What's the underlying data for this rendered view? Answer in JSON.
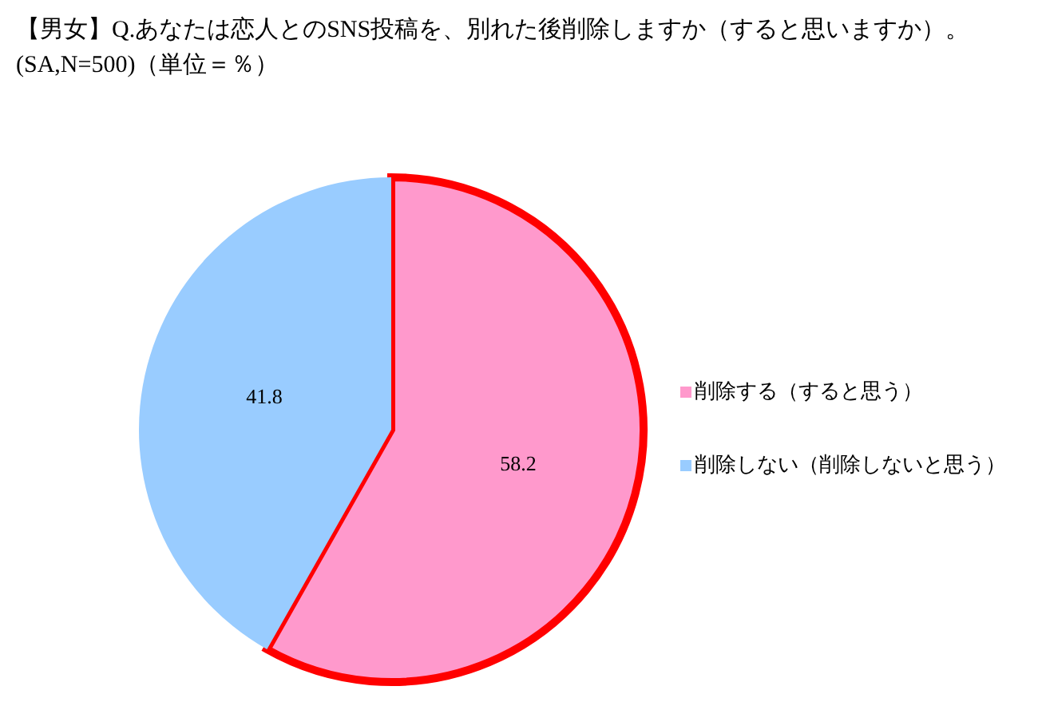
{
  "chart_data": {
    "type": "pie",
    "title": "【男女】Q.あなたは恋人とのSNS投稿を、別れた後削除しますか（すると思いますか）。",
    "subtitle": "(SA,N=500)（単位＝％）",
    "categories": [
      "削除する（すると思う）",
      "削除しない（削除しないと思う）"
    ],
    "values": [
      58.2,
      41.8
    ],
    "colors": [
      "#ff99cc",
      "#99ccff"
    ],
    "data_labels": true,
    "legend": "right"
  }
}
